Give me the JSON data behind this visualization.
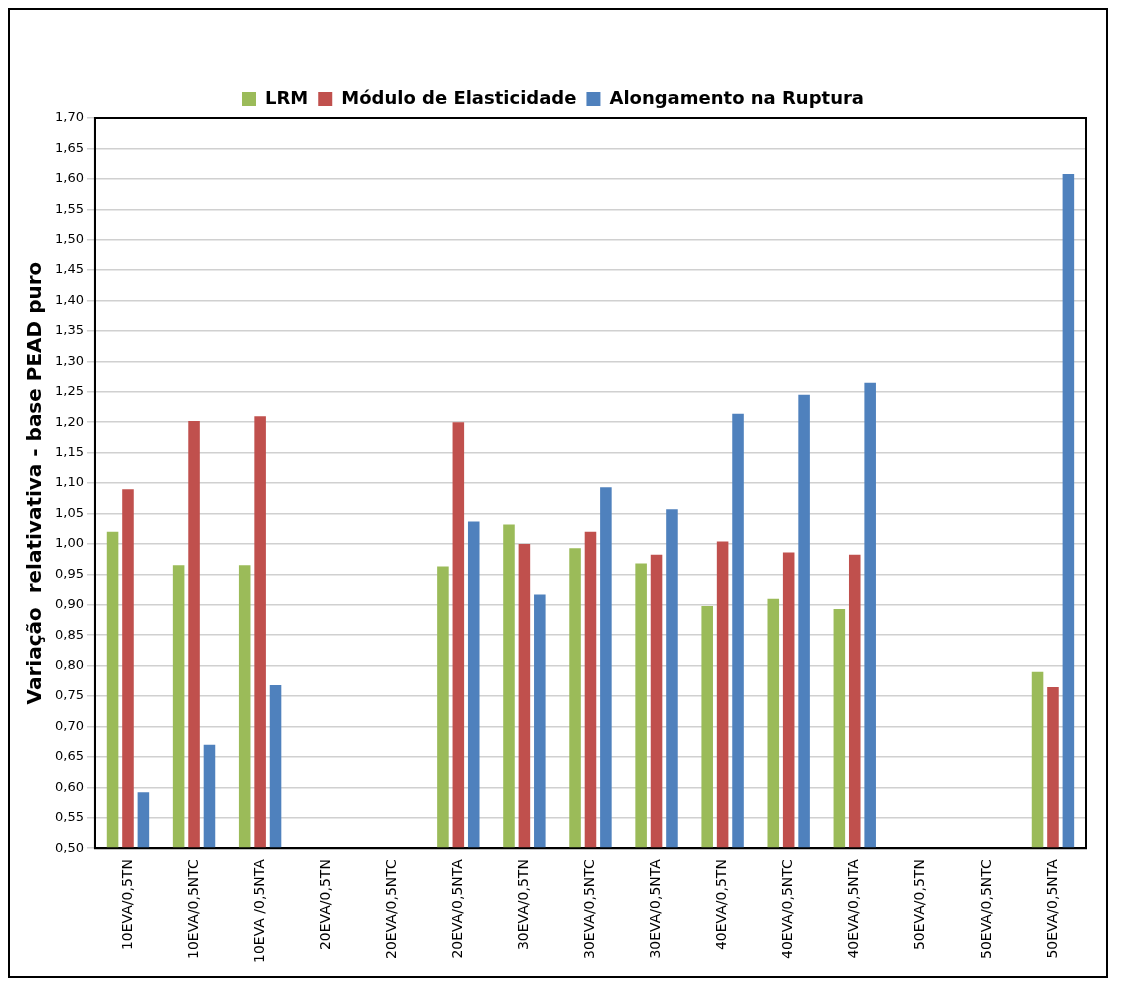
{
  "chart_data": {
    "type": "bar",
    "ylabel": "Variação  relativativa - base PEAD puro",
    "categories": [
      "10EVA/0,5TN",
      "10EVA/0,5NTC",
      "10EVA /0,5NTA",
      "20EVA/0,5TN",
      "20EVA/0,5NTC",
      "20EVA/0,5NTA",
      "30EVA/0,5TN",
      "30EVA/0,5NTC",
      "30EVA/0,5NTA",
      "40EVA/0,5TN",
      "40EVA/0,5NTC",
      "40EVA/0,5NTA",
      "50EVA/0,5TN",
      "50EVA/0,5NTC",
      "50EVA/0,5NTA"
    ],
    "series": [
      {
        "name": "LRM",
        "color": "#9bbb59",
        "values": [
          1.02,
          0.965,
          0.965,
          null,
          null,
          0.963,
          1.032,
          0.993,
          0.968,
          0.898,
          0.91,
          0.893,
          null,
          null,
          0.79
        ]
      },
      {
        "name": "Módulo de Elasticidade",
        "color": "#c0504d",
        "values": [
          1.09,
          1.202,
          1.21,
          null,
          null,
          1.2,
          1.0,
          1.02,
          0.982,
          1.004,
          0.986,
          0.982,
          null,
          null,
          0.765
        ]
      },
      {
        "name": "Alongamento na Ruptura",
        "color": "#4f81bd",
        "values": [
          0.592,
          0.67,
          0.768,
          null,
          null,
          1.037,
          0.917,
          1.093,
          1.057,
          1.214,
          1.245,
          1.265,
          null,
          null,
          1.608
        ]
      }
    ],
    "ylim": [
      0.5,
      1.7
    ],
    "yticks": [
      {
        "value": 0.5,
        "label": "0,50"
      },
      {
        "value": 0.55,
        "label": "0,55"
      },
      {
        "value": 0.6,
        "label": "0,60"
      },
      {
        "value": 0.65,
        "label": "0,65"
      },
      {
        "value": 0.7,
        "label": "0,70"
      },
      {
        "value": 0.75,
        "label": "0,75"
      },
      {
        "value": 0.8,
        "label": "0,80"
      },
      {
        "value": 0.85,
        "label": "0,85"
      },
      {
        "value": 0.9,
        "label": "0,90"
      },
      {
        "value": 0.95,
        "label": "0,95"
      },
      {
        "value": 1.0,
        "label": "1,00"
      },
      {
        "value": 1.05,
        "label": "1,05"
      },
      {
        "value": 1.1,
        "label": "1,10"
      },
      {
        "value": 1.15,
        "label": "1,15"
      },
      {
        "value": 1.2,
        "label": "1,20"
      },
      {
        "value": 1.25,
        "label": "1,25"
      },
      {
        "value": 1.3,
        "label": "1,30"
      },
      {
        "value": 1.35,
        "label": "1,35"
      },
      {
        "value": 1.4,
        "label": "1,40"
      },
      {
        "value": 1.45,
        "label": "1,45"
      },
      {
        "value": 1.5,
        "label": "1,50"
      },
      {
        "value": 1.55,
        "label": "1,55"
      },
      {
        "value": 1.6,
        "label": "1,60"
      },
      {
        "value": 1.65,
        "label": "1,65"
      },
      {
        "value": 1.7,
        "label": "1,70"
      }
    ],
    "grid": "y",
    "legend": "top"
  }
}
